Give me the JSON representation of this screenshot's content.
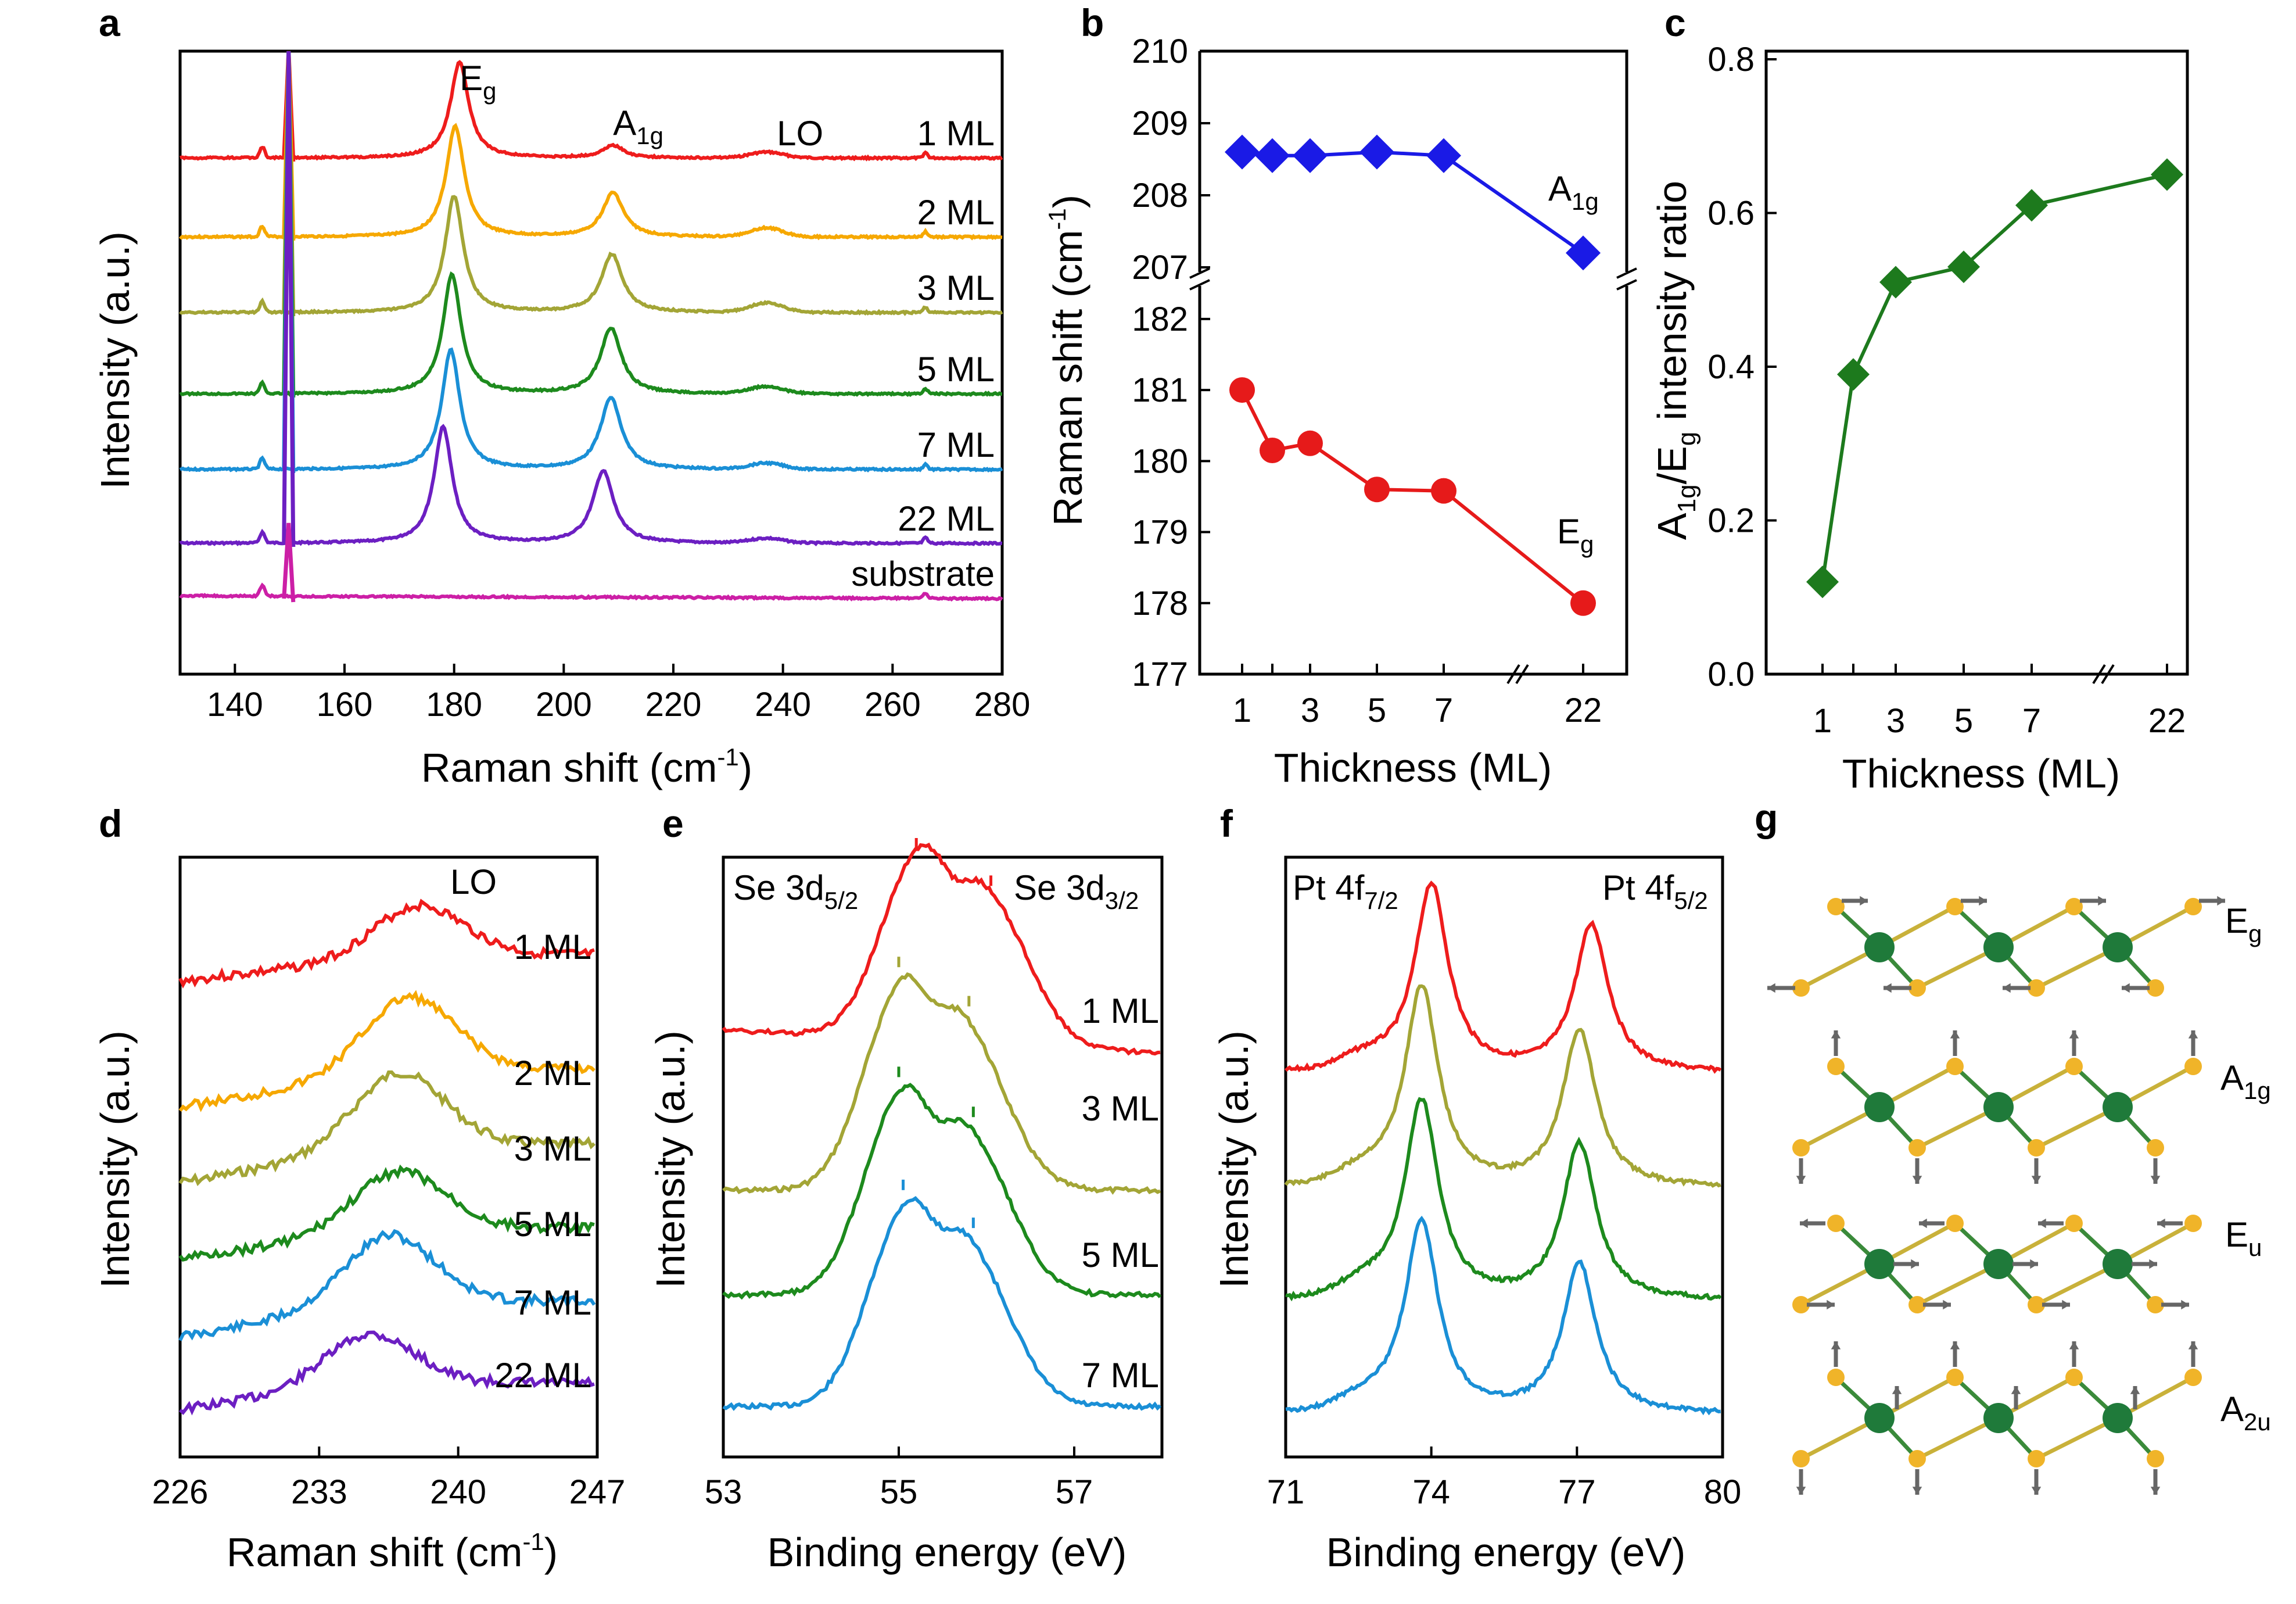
{
  "colors": {
    "1 ML": "#ee1c1c",
    "2 ML": "#f6a800",
    "3 ML": "#a3a536",
    "5 ML": "#1d8a1d",
    "7 ML": "#1a8fd6",
    "22 ML": "#6c1fc2",
    "substrate": "#cc1fa6",
    "A1g_b": "#1a1ae6",
    "Eg_b": "#e61a1a",
    "ratio_c": "#1d7a1d",
    "Pt_atom": "#1f7a3a",
    "Se_atom": "#f0b429"
  },
  "chart_data": [
    {
      "panel": "a",
      "type": "line",
      "xlabel": "Raman shift (cm",
      "xlabel_sup": "-1",
      "xlabel_close": ")",
      "ylabel": "Intensity (a.u.)",
      "xlim": [
        130,
        280
      ],
      "xticks": [
        140,
        160,
        180,
        200,
        220,
        240,
        260,
        280
      ],
      "peak_labels": [
        {
          "text": "E",
          "sub": "g",
          "x": 181
        },
        {
          "text": "A",
          "sub": "1g",
          "x": 209
        },
        {
          "text": "LO",
          "sub": "",
          "x": 241
        }
      ],
      "series": [
        {
          "name": "1 ML",
          "Eg": 181,
          "A1g": 209,
          "Eg_h": 1.0,
          "A1g_h": 0.13,
          "LO_h": 0.06,
          "si": 0.5
        },
        {
          "name": "2 ML",
          "Eg": 180.2,
          "A1g": 209,
          "Eg_h": 1.0,
          "A1g_h": 0.4,
          "LO_h": 0.08,
          "si": 0.6
        },
        {
          "name": "3 ML",
          "Eg": 180,
          "A1g": 208.8,
          "Eg_h": 1.0,
          "A1g_h": 0.5,
          "LO_h": 0.08,
          "si": 0.9
        },
        {
          "name": "5 ML",
          "Eg": 179.6,
          "A1g": 208.6,
          "Eg_h": 1.0,
          "A1g_h": 0.55,
          "LO_h": 0.06,
          "si": 1.3
        },
        {
          "name": "7 ML",
          "Eg": 179.4,
          "A1g": 208.6,
          "Eg_h": 1.0,
          "A1g_h": 0.6,
          "LO_h": 0.05,
          "si": 1.1
        },
        {
          "name": "22 ML",
          "Eg": 178,
          "A1g": 207.2,
          "Eg_h": 1.0,
          "A1g_h": 0.62,
          "LO_h": 0.04,
          "si": 1.0
        },
        {
          "name": "substrate",
          "Eg": 0,
          "A1g": 0,
          "Eg_h": 0,
          "A1g_h": 0,
          "LO_h": 0,
          "si": 1.2
        }
      ]
    },
    {
      "panel": "b",
      "type": "line",
      "xlabel": "Thickness (ML)",
      "ylabel": "Raman shift (cm",
      "ylabel_sup": "-1",
      "ylabel_close": ")",
      "xticks": [
        "1",
        "3",
        "5",
        "7",
        "22"
      ],
      "yticks_top": [
        207,
        208,
        209,
        210
      ],
      "yticks_bottom": [
        177,
        178,
        179,
        180,
        181,
        182
      ],
      "ylim_top": [
        207,
        210
      ],
      "ylim_bottom": [
        177,
        182.4
      ],
      "series": [
        {
          "name": "A",
          "sub": "1g",
          "marker": "diamond",
          "x": [
            1,
            2,
            3,
            5,
            7,
            22
          ],
          "values": [
            208.6,
            208.55,
            208.55,
            208.6,
            208.55,
            207.2
          ]
        },
        {
          "name": "E",
          "sub": "g",
          "marker": "circle",
          "x": [
            1,
            2,
            3,
            5,
            7,
            22
          ],
          "values": [
            181.0,
            180.15,
            180.25,
            179.6,
            179.58,
            178.0
          ]
        }
      ]
    },
    {
      "panel": "c",
      "type": "line",
      "xlabel": "Thickness (ML)",
      "ylabel_parts": [
        "A",
        "1g",
        "/E",
        "g",
        " intensity ratio"
      ],
      "xticks": [
        "1",
        "3",
        "5",
        "7",
        "22"
      ],
      "yticks": [
        "0.0",
        "0.2",
        "0.4",
        "0.6",
        "0.8"
      ],
      "ylim": [
        0,
        0.8
      ],
      "series": [
        {
          "name": "ratio",
          "marker": "diamond",
          "x": [
            1,
            2,
            3,
            5,
            7,
            22
          ],
          "values": [
            0.12,
            0.39,
            0.51,
            0.53,
            0.61,
            0.65
          ]
        }
      ]
    },
    {
      "panel": "d",
      "type": "line",
      "xlabel": "Raman shift (cm",
      "xlabel_sup": "-1",
      "xlabel_close": ")",
      "ylabel": "Intensity (a.u.)",
      "xlim": [
        226,
        247
      ],
      "xticks": [
        226,
        233,
        240,
        247
      ],
      "peak_label": "LO",
      "series": [
        {
          "name": "1 ML",
          "center": 238,
          "seed": 3
        },
        {
          "name": "2 ML",
          "center": 237.5,
          "seed": 5
        },
        {
          "name": "3 ML",
          "center": 237,
          "seed": 7
        },
        {
          "name": "5 ML",
          "center": 237,
          "seed": 9
        },
        {
          "name": "7 ML",
          "center": 236.5,
          "seed": 11
        },
        {
          "name": "22 ML",
          "center": 235.5,
          "seed": 13
        }
      ]
    },
    {
      "panel": "e",
      "type": "line",
      "xlabel": "Binding energy (eV)",
      "ylabel": "Intensity (a.u.)",
      "xlim": [
        53,
        58
      ],
      "xticks": [
        53,
        55,
        57
      ],
      "labels": [
        {
          "text": "Se 3d",
          "sub": "5/2"
        },
        {
          "text": "Se 3d",
          "sub": "3/2"
        }
      ],
      "series": [
        {
          "name": "1 ML",
          "p1": 55.2,
          "p2": 56.05
        },
        {
          "name": "3 ML",
          "p1": 55.0,
          "p2": 55.8
        },
        {
          "name": "5 ML",
          "p1": 55.0,
          "p2": 55.85
        },
        {
          "name": "7 ML",
          "p1": 55.05,
          "p2": 55.85
        }
      ]
    },
    {
      "panel": "f",
      "type": "line",
      "xlabel": "Binding energy (eV)",
      "ylabel": "Intensity (a.u.)",
      "xlim": [
        71,
        80
      ],
      "xticks": [
        71,
        74,
        77,
        80
      ],
      "labels": [
        {
          "text": "Pt 4f",
          "sub": "7/2"
        },
        {
          "text": "Pt 4f",
          "sub": "5/2"
        }
      ],
      "series": [
        {
          "name": "1 ML",
          "p1": 74.0,
          "p2": 77.3
        },
        {
          "name": "3 ML",
          "p1": 73.8,
          "p2": 77.05
        },
        {
          "name": "5 ML",
          "p1": 73.8,
          "p2": 77.05
        },
        {
          "name": "7 ML",
          "p1": 73.8,
          "p2": 77.05
        }
      ]
    }
  ],
  "panel_g": {
    "modes": [
      {
        "text": "E",
        "sub": "g"
      },
      {
        "text": "A",
        "sub": "1g"
      },
      {
        "text": "E",
        "sub": "u"
      },
      {
        "text": "A",
        "sub": "2u"
      }
    ]
  },
  "panel_letters": [
    "a",
    "b",
    "c",
    "d",
    "e",
    "f",
    "g"
  ]
}
